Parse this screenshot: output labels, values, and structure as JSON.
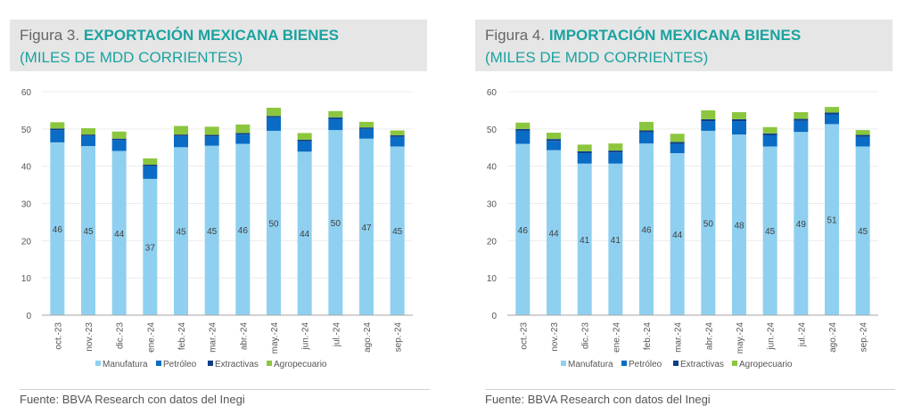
{
  "chart_data": [
    {
      "type": "bar",
      "stacked": true,
      "figure_label": "Figura 3.",
      "title": "EXPORTACIÓN MEXICANA BIENES",
      "subtitle": "(MILES DE MDD CORRIENTES)",
      "xlabel": "",
      "ylabel": "",
      "ylim": [
        0,
        60
      ],
      "yticks": [
        0,
        10,
        20,
        30,
        40,
        50,
        60
      ],
      "grid": true,
      "legend_position": "bottom",
      "categories": [
        "oct.-23",
        "nov.-23",
        "dic.-23",
        "ene.-24",
        "feb.-24",
        "mar.-24",
        "abr.-24",
        "may.-24",
        "jun.-24",
        "jul.-24",
        "ago.-24",
        "sep.-24"
      ],
      "series": [
        {
          "name": "Manufatura",
          "color": "#8fd0f0",
          "values": [
            46.4,
            45.4,
            44.1,
            36.6,
            45.1,
            45.5,
            46.0,
            49.5,
            43.9,
            49.7,
            47.4,
            45.3
          ]
        },
        {
          "name": "Petróleo",
          "color": "#0a6cc4",
          "values": [
            3.3,
            2.7,
            2.9,
            3.4,
            3.0,
            2.5,
            2.5,
            3.6,
            2.8,
            3.0,
            2.6,
            2.6
          ]
        },
        {
          "name": "Extractivas",
          "color": "#0d3f86",
          "values": [
            0.4,
            0.4,
            0.4,
            0.4,
            0.4,
            0.4,
            0.4,
            0.4,
            0.4,
            0.4,
            0.4,
            0.4
          ]
        },
        {
          "name": "Agropecuario",
          "color": "#8cc63f",
          "values": [
            1.7,
            1.7,
            1.9,
            1.7,
            2.3,
            2.2,
            2.3,
            2.2,
            1.8,
            1.7,
            1.5,
            1.3
          ]
        }
      ],
      "data_labels": [
        "46",
        "45",
        "44",
        "37",
        "45",
        "45",
        "46",
        "50",
        "44",
        "50",
        "47",
        "45"
      ],
      "source": "Fuente: BBVA Research con datos del Inegi"
    },
    {
      "type": "bar",
      "stacked": true,
      "figure_label": "Figura 4.",
      "title": "IMPORTACIÓN MEXICANA BIENES",
      "subtitle": "(MILES DE MDD CORRIENTES)",
      "xlabel": "",
      "ylabel": "",
      "ylim": [
        0,
        60
      ],
      "yticks": [
        0,
        10,
        20,
        30,
        40,
        50,
        60
      ],
      "grid": true,
      "legend_position": "bottom",
      "categories": [
        "oct.-23",
        "nov.-23",
        "dic.-23",
        "ene.-24",
        "feb.-24",
        "mar.-24",
        "abr.-24",
        "may.-24",
        "jun.-24",
        "jul.-24",
        "ago.-24",
        "sep.-24"
      ],
      "series": [
        {
          "name": "Manufatura",
          "color": "#8fd0f0",
          "values": [
            46.0,
            44.3,
            40.7,
            40.7,
            46.1,
            43.5,
            49.5,
            48.5,
            45.3,
            49.2,
            51.3,
            45.3
          ]
        },
        {
          "name": "Petróleo",
          "color": "#0a6cc4",
          "values": [
            3.5,
            2.5,
            2.8,
            3.0,
            3.0,
            2.5,
            2.6,
            3.6,
            3.0,
            3.0,
            2.6,
            2.6
          ]
        },
        {
          "name": "Extractivas",
          "color": "#0d3f86",
          "values": [
            0.5,
            0.5,
            0.5,
            0.5,
            0.5,
            0.5,
            0.5,
            0.5,
            0.5,
            0.5,
            0.5,
            0.5
          ]
        },
        {
          "name": "Agropecuario",
          "color": "#8cc63f",
          "values": [
            1.7,
            1.7,
            1.8,
            1.9,
            2.3,
            2.2,
            2.4,
            1.9,
            1.7,
            1.8,
            1.5,
            1.3
          ]
        }
      ],
      "data_labels": [
        "46",
        "44",
        "41",
        "41",
        "46",
        "44",
        "50",
        "48",
        "45",
        "49",
        "51",
        "45"
      ],
      "source": "Fuente: BBVA Research con datos del Inegi"
    }
  ]
}
